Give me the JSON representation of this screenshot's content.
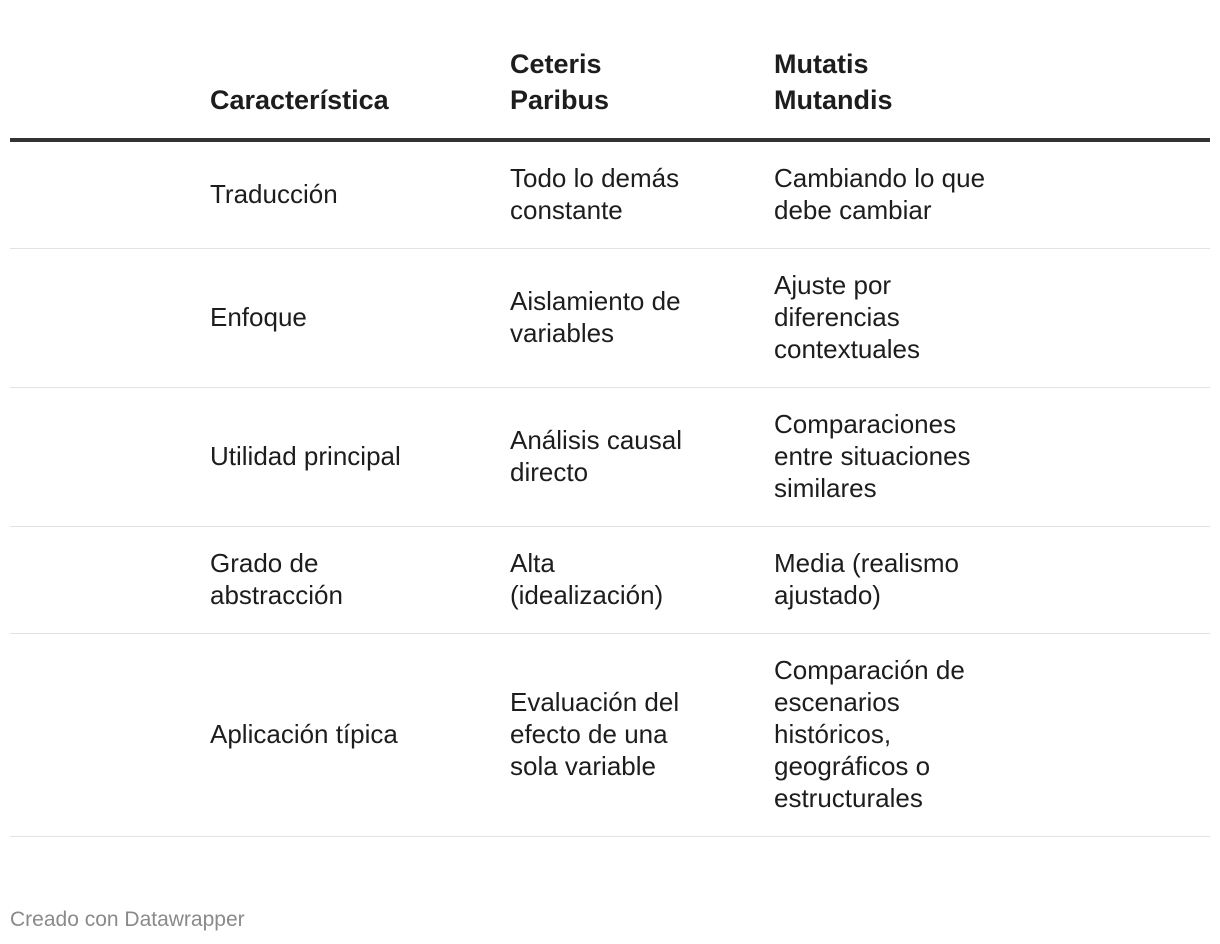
{
  "table": {
    "headers": [
      "",
      "Característica",
      "Ceteris Paribus",
      "Mutatis Mutandis"
    ],
    "rows": [
      [
        "Traducción",
        "Todo lo demás constante",
        "Cambiando lo que debe cambiar"
      ],
      [
        "Enfoque",
        "Aislamiento de variables",
        "Ajuste por diferencias contextuales"
      ],
      [
        "Utilidad principal",
        "Análisis causal directo",
        "Comparaciones entre situaciones similares"
      ],
      [
        "Grado de abstracción",
        "Alta (idealización)",
        "Media (realismo ajustado)"
      ],
      [
        "Aplicación típica",
        "Evaluación del efecto de una sola variable",
        "Comparación de escenarios históricos, geográficos o estructurales"
      ]
    ]
  },
  "footer": {
    "credit": "Creado con Datawrapper"
  }
}
